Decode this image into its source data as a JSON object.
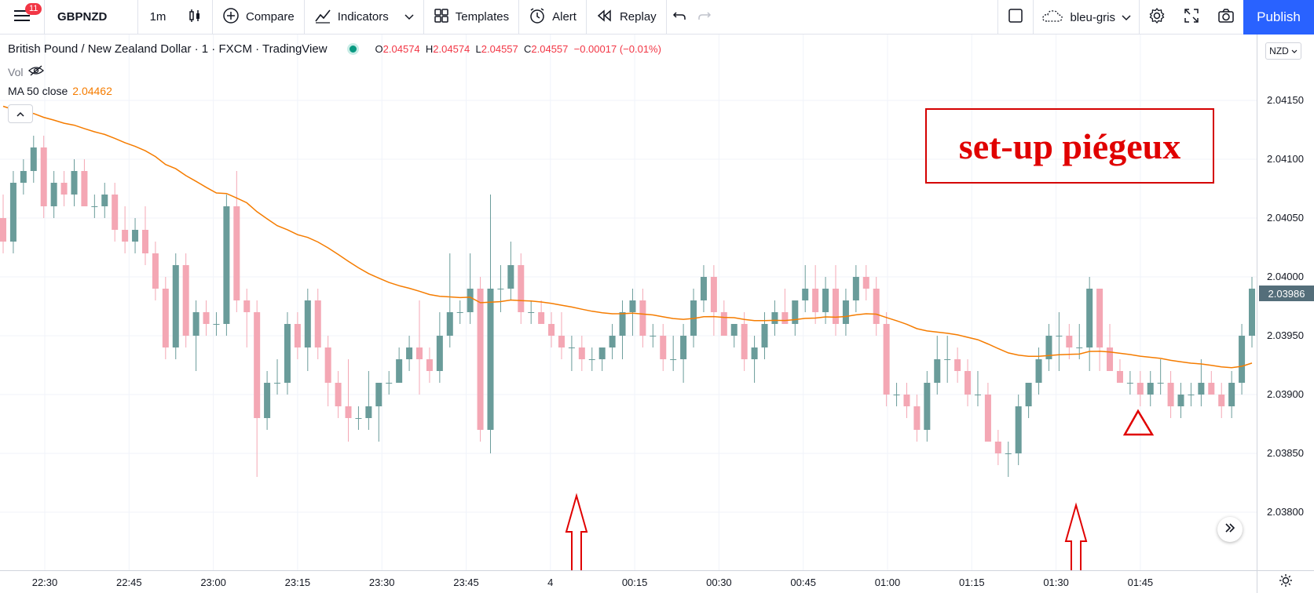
{
  "toolbar": {
    "notifications": "11",
    "symbol": "GBPNZD",
    "interval": "1m",
    "compare": "Compare",
    "indicators": "Indicators",
    "templates": "Templates",
    "alert": "Alert",
    "replay": "Replay",
    "layout_name": "bleu-gris",
    "publish": "Publish"
  },
  "legend": {
    "title": "British Pound / New Zealand Dollar · 1 · FXCM · TradingView",
    "open_k": "O",
    "open_v": "2.04574",
    "high_k": "H",
    "high_v": "2.04574",
    "low_k": "L",
    "low_v": "2.04557",
    "close_k": "C",
    "close_v": "2.04557",
    "change": "−0.00017 (−0.01%)",
    "vol": "Vol",
    "ma_label": "MA 50 close",
    "ma_value": "2.04462"
  },
  "annotation": {
    "text": "set-up piégeux"
  },
  "price_axis": {
    "currency": "NZD",
    "current_price": "2.03986",
    "labels": [
      "2.04150",
      "2.04100",
      "2.04050",
      "2.04000",
      "2.03950",
      "2.03900",
      "2.03850",
      "2.03800"
    ]
  },
  "time_axis": {
    "labels": [
      "22:30",
      "22:45",
      "23:00",
      "23:15",
      "23:30",
      "23:45",
      "4",
      "00:15",
      "00:30",
      "00:45",
      "01:00",
      "01:15",
      "01:30",
      "01:45"
    ]
  },
  "colors": {
    "up": "#6a9c9a",
    "down": "#f4a7b4",
    "ma": "#f57c00",
    "annotation": "#e00000",
    "accent": "#2962ff"
  },
  "chart_data": {
    "type": "candlestick",
    "ylim": [
      2.0378,
      2.0418
    ],
    "candles": [
      [
        2.0405,
        2.0407,
        2.0402,
        2.0403
      ],
      [
        2.0403,
        2.0409,
        2.0402,
        2.0408
      ],
      [
        2.0408,
        2.041,
        2.0407,
        2.0409
      ],
      [
        2.0409,
        2.0412,
        2.0408,
        2.0411
      ],
      [
        2.0411,
        2.0412,
        2.0405,
        2.0406
      ],
      [
        2.0406,
        2.0409,
        2.0405,
        2.0408
      ],
      [
        2.0408,
        2.0409,
        2.0406,
        2.0407
      ],
      [
        2.0407,
        2.041,
        2.0406,
        2.0409
      ],
      [
        2.0409,
        2.041,
        2.0406,
        2.0406
      ],
      [
        2.0406,
        2.0407,
        2.0405,
        2.0406
      ],
      [
        2.0406,
        2.0408,
        2.0405,
        2.0407
      ],
      [
        2.0407,
        2.0408,
        2.0403,
        2.0404
      ],
      [
        2.0404,
        2.0406,
        2.0402,
        2.0403
      ],
      [
        2.0403,
        2.0405,
        2.0402,
        2.0404
      ],
      [
        2.0404,
        2.0406,
        2.0401,
        2.0402
      ],
      [
        2.0402,
        2.0403,
        2.0398,
        2.0399
      ],
      [
        2.0399,
        2.04,
        2.0393,
        2.0394
      ],
      [
        2.0394,
        2.0402,
        2.0393,
        2.0401
      ],
      [
        2.0401,
        2.0402,
        2.0394,
        2.0395
      ],
      [
        2.0395,
        2.0398,
        2.0392,
        2.0397
      ],
      [
        2.0397,
        2.0398,
        2.0395,
        2.0396
      ],
      [
        2.0396,
        2.0397,
        2.0395,
        2.0396
      ],
      [
        2.0396,
        2.0407,
        2.0395,
        2.0406
      ],
      [
        2.0406,
        2.0409,
        2.0397,
        2.0398
      ],
      [
        2.0398,
        2.0399,
        2.0394,
        2.0397
      ],
      [
        2.0397,
        2.0398,
        2.0383,
        2.0388
      ],
      [
        2.0388,
        2.0392,
        2.0387,
        2.0391
      ],
      [
        2.0391,
        2.0393,
        2.039,
        2.0391
      ],
      [
        2.0391,
        2.0397,
        2.039,
        2.0396
      ],
      [
        2.0396,
        2.0397,
        2.0393,
        2.0394
      ],
      [
        2.0394,
        2.0399,
        2.0392,
        2.0398
      ],
      [
        2.0398,
        2.0399,
        2.0393,
        2.0394
      ],
      [
        2.0394,
        2.0395,
        2.0389,
        2.0391
      ],
      [
        2.0391,
        2.0392,
        2.0388,
        2.0389
      ],
      [
        2.0389,
        2.0393,
        2.0386,
        2.0388
      ],
      [
        2.0388,
        2.0389,
        2.0387,
        2.0388
      ],
      [
        2.0388,
        2.0392,
        2.0387,
        2.0389
      ],
      [
        2.0389,
        2.0391,
        2.0386,
        2.0391
      ],
      [
        2.0391,
        2.0392,
        2.039,
        2.0391
      ],
      [
        2.0391,
        2.0394,
        2.0391,
        2.0393
      ],
      [
        2.0393,
        2.0395,
        2.0392,
        2.0394
      ],
      [
        2.0394,
        2.0398,
        2.039,
        2.0393
      ],
      [
        2.0393,
        2.0394,
        2.0391,
        2.0392
      ],
      [
        2.0392,
        2.0397,
        2.0391,
        2.0395
      ],
      [
        2.0395,
        2.0402,
        2.0394,
        2.0397
      ],
      [
        2.0397,
        2.0398,
        2.0396,
        2.0397
      ],
      [
        2.0397,
        2.0402,
        2.0396,
        2.0399
      ],
      [
        2.0399,
        2.04,
        2.0386,
        2.0387
      ],
      [
        2.0387,
        2.0407,
        2.0385,
        2.0399
      ],
      [
        2.0399,
        2.0401,
        2.0397,
        2.0399
      ],
      [
        2.0399,
        2.0403,
        2.0398,
        2.0401
      ],
      [
        2.0401,
        2.0402,
        2.0396,
        2.0397
      ],
      [
        2.0397,
        2.0398,
        2.0396,
        2.0397
      ],
      [
        2.0397,
        2.0398,
        2.0396,
        2.0396
      ],
      [
        2.0396,
        2.0397,
        2.0394,
        2.0395
      ],
      [
        2.0395,
        2.0397,
        2.0393,
        2.0394
      ],
      [
        2.0394,
        2.0395,
        2.0392,
        2.0394
      ],
      [
        2.0394,
        2.0395,
        2.0392,
        2.0393
      ],
      [
        2.0393,
        2.0394,
        2.0392,
        2.0393
      ],
      [
        2.0393,
        2.0394,
        2.0392,
        2.0394
      ],
      [
        2.0394,
        2.0396,
        2.0393,
        2.0395
      ],
      [
        2.0395,
        2.0398,
        2.0393,
        2.0397
      ],
      [
        2.0397,
        2.0399,
        2.0395,
        2.0398
      ],
      [
        2.0398,
        2.0399,
        2.0394,
        2.0395
      ],
      [
        2.0395,
        2.0396,
        2.0394,
        2.0395
      ],
      [
        2.0395,
        2.0396,
        2.0392,
        2.0393
      ],
      [
        2.0393,
        2.0395,
        2.0392,
        2.0393
      ],
      [
        2.0393,
        2.0396,
        2.0391,
        2.0395
      ],
      [
        2.0395,
        2.0399,
        2.0394,
        2.0398
      ],
      [
        2.0398,
        2.0401,
        2.0397,
        2.04
      ],
      [
        2.04,
        2.0401,
        2.0395,
        2.0397
      ],
      [
        2.0397,
        2.0398,
        2.0395,
        2.0395
      ],
      [
        2.0395,
        2.0396,
        2.0394,
        2.0396
      ],
      [
        2.0396,
        2.0397,
        2.0392,
        2.0393
      ],
      [
        2.0393,
        2.0395,
        2.0391,
        2.0394
      ],
      [
        2.0394,
        2.0397,
        2.0393,
        2.0396
      ],
      [
        2.0396,
        2.0398,
        2.0395,
        2.0397
      ],
      [
        2.0397,
        2.0399,
        2.0396,
        2.0396
      ],
      [
        2.0396,
        2.0398,
        2.0395,
        2.0398
      ],
      [
        2.0398,
        2.0401,
        2.0397,
        2.0399
      ],
      [
        2.0399,
        2.0401,
        2.0396,
        2.0397
      ],
      [
        2.0397,
        2.04,
        2.0396,
        2.0399
      ],
      [
        2.0399,
        2.0401,
        2.0395,
        2.0396
      ],
      [
        2.0396,
        2.0399,
        2.0395,
        2.0398
      ],
      [
        2.0398,
        2.0401,
        2.0397,
        2.04
      ],
      [
        2.04,
        2.0401,
        2.0398,
        2.0399
      ],
      [
        2.0399,
        2.04,
        2.0395,
        2.0396
      ],
      [
        2.0396,
        2.0397,
        2.0389,
        2.039
      ],
      [
        2.039,
        2.0391,
        2.0389,
        2.039
      ],
      [
        2.039,
        2.0391,
        2.0388,
        2.0389
      ],
      [
        2.0389,
        2.039,
        2.0386,
        2.0387
      ],
      [
        2.0387,
        2.0392,
        2.0386,
        2.0391
      ],
      [
        2.0391,
        2.0395,
        2.039,
        2.0393
      ],
      [
        2.0393,
        2.0395,
        2.0391,
        2.0393
      ],
      [
        2.0393,
        2.0394,
        2.0391,
        2.0392
      ],
      [
        2.0392,
        2.0393,
        2.0389,
        2.039
      ],
      [
        2.039,
        2.0392,
        2.0389,
        2.039
      ],
      [
        2.039,
        2.0391,
        2.0386,
        2.0386
      ],
      [
        2.0386,
        2.0387,
        2.0384,
        2.0385
      ],
      [
        2.0385,
        2.0386,
        2.0383,
        2.0385
      ],
      [
        2.0385,
        2.039,
        2.0384,
        2.0389
      ],
      [
        2.0389,
        2.0391,
        2.0388,
        2.0391
      ],
      [
        2.0391,
        2.0394,
        2.039,
        2.0393
      ],
      [
        2.0393,
        2.0396,
        2.0392,
        2.0395
      ],
      [
        2.0395,
        2.0397,
        2.0392,
        2.0395
      ],
      [
        2.0395,
        2.0396,
        2.0393,
        2.0394
      ],
      [
        2.0394,
        2.0396,
        2.0393,
        2.0394
      ],
      [
        2.0394,
        2.04,
        2.0392,
        2.0399
      ],
      [
        2.0399,
        2.0399,
        2.0392,
        2.0394
      ],
      [
        2.0394,
        2.0396,
        2.0392,
        2.0392
      ],
      [
        2.0392,
        2.0393,
        2.0391,
        2.0391
      ],
      [
        2.0391,
        2.0392,
        2.039,
        2.0391
      ],
      [
        2.0391,
        2.0392,
        2.0389,
        2.039
      ],
      [
        2.039,
        2.0392,
        2.0389,
        2.0391
      ],
      [
        2.0391,
        2.0393,
        2.039,
        2.0391
      ],
      [
        2.0391,
        2.0392,
        2.0388,
        2.0389
      ],
      [
        2.0389,
        2.0391,
        2.0388,
        2.039
      ],
      [
        2.039,
        2.0391,
        2.0389,
        2.039
      ],
      [
        2.039,
        2.0393,
        2.0389,
        2.0391
      ],
      [
        2.0391,
        2.0392,
        2.039,
        2.039
      ],
      [
        2.039,
        2.0391,
        2.0388,
        2.0389
      ],
      [
        2.0389,
        2.0392,
        2.0388,
        2.0391
      ],
      [
        2.0391,
        2.0396,
        2.039,
        2.0395
      ],
      [
        2.0395,
        2.04,
        2.0394,
        2.0399
      ]
    ],
    "ma_start": 2.0415,
    "ma_end": 2.0391
  }
}
